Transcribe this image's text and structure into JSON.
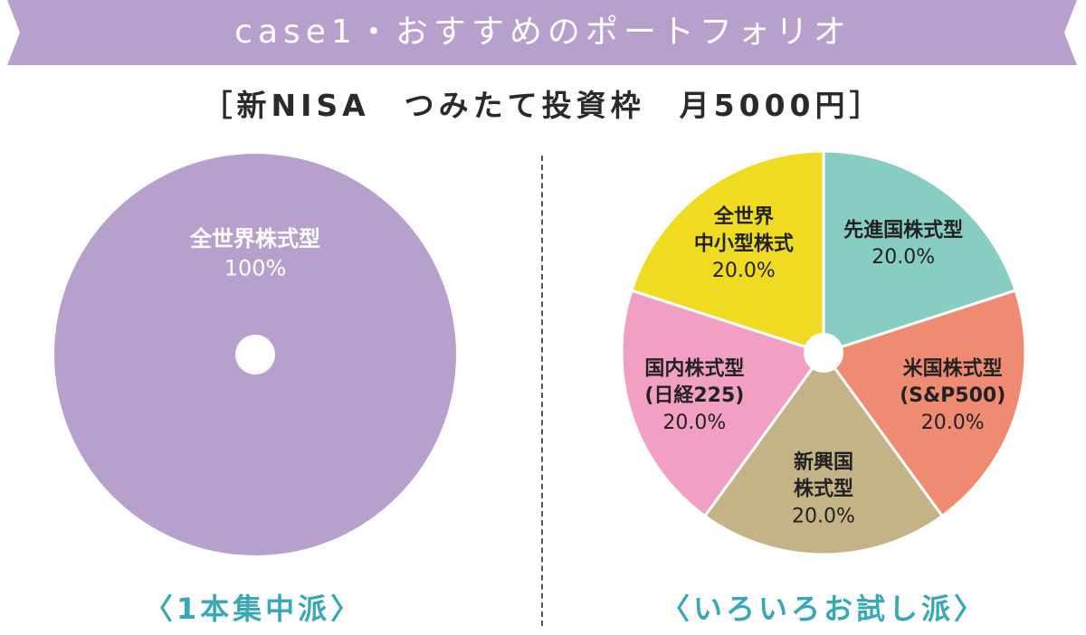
{
  "banner": {
    "title": "case1・おすすめのポートフォリオ"
  },
  "subtitle": "［新NISA　つみたて投資枠　月5000円］",
  "chart_data": [
    {
      "type": "pie",
      "caption": "〈1本集中派〉",
      "slices": [
        {
          "label": "全世界株式型",
          "value": 100,
          "value_label": "100%",
          "color": "#b8a0cc"
        }
      ]
    },
    {
      "type": "pie",
      "caption": "〈いろいろお試し派〉",
      "slices": [
        {
          "label": "先進国株式型",
          "value": 20.0,
          "value_label": "20.0%",
          "color": "#88cdc1"
        },
        {
          "label": "米国株式型\n(S&P500)",
          "value": 20.0,
          "value_label": "20.0%",
          "color": "#ef8b72"
        },
        {
          "label": "新興国\n株式型",
          "value": 20.0,
          "value_label": "20.0%",
          "color": "#c3b386"
        },
        {
          "label": "国内株式型\n(日経225)",
          "value": 20.0,
          "value_label": "20.0%",
          "color": "#f29fc4"
        },
        {
          "label": "全世界\n中小型株式",
          "value": 20.0,
          "value_label": "20.0%",
          "color": "#eedb22"
        }
      ]
    }
  ],
  "colors": {
    "banner": "#b8a0cc",
    "caption": "#3aa7b5"
  }
}
